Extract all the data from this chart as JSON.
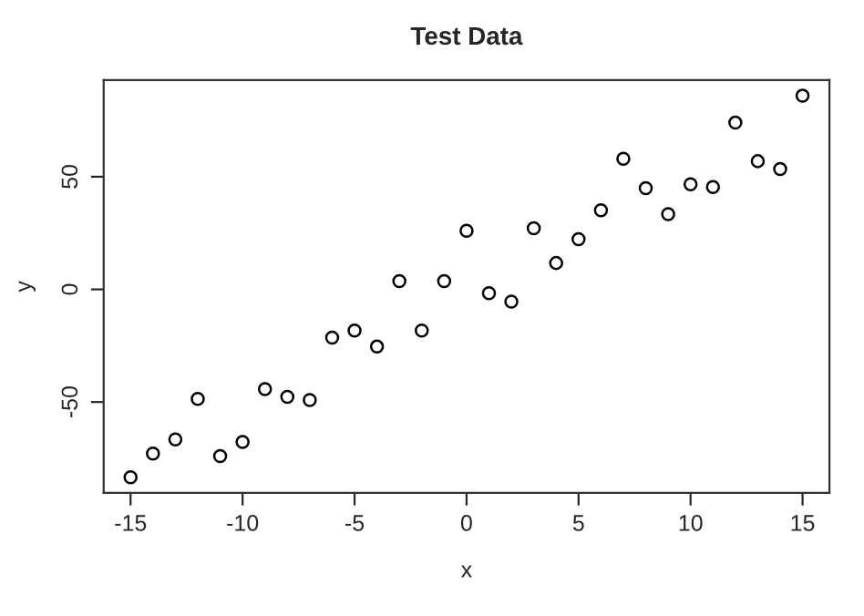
{
  "chart_data": {
    "type": "scatter",
    "title": "Test Data",
    "xlabel": "x",
    "ylabel": "y",
    "x": [
      -15,
      -14,
      -13,
      -12,
      -11,
      -10,
      -9,
      -8,
      -7,
      -6,
      -5,
      -4,
      -3,
      -2,
      -1,
      0,
      1,
      2,
      3,
      4,
      5,
      6,
      7,
      8,
      9,
      10,
      11,
      12,
      13,
      14,
      15
    ],
    "series": [
      {
        "color": "#000000",
        "values": [
          -83.4,
          -72.9,
          -66.6,
          -48.6,
          -74,
          -67.7,
          -44.3,
          -47.7,
          -49.1,
          -21.4,
          -18.3,
          -25.4,
          3.7,
          -18.3,
          3.7,
          26,
          -1.7,
          -5.4,
          27.1,
          11.7,
          22.3,
          35.1,
          58,
          44.9,
          33.4,
          46.6,
          45.4,
          74,
          56.9,
          53.4,
          86
        ]
      }
    ],
    "xlim": [
      -16.2,
      16.2
    ],
    "ylim": [
      -90.3,
      92.9
    ],
    "xticks": [
      -15,
      -10,
      -5,
      0,
      5,
      10,
      15
    ],
    "yticks": [
      -50,
      0,
      50
    ],
    "marker": "circle",
    "grid": false,
    "legend": false
  }
}
